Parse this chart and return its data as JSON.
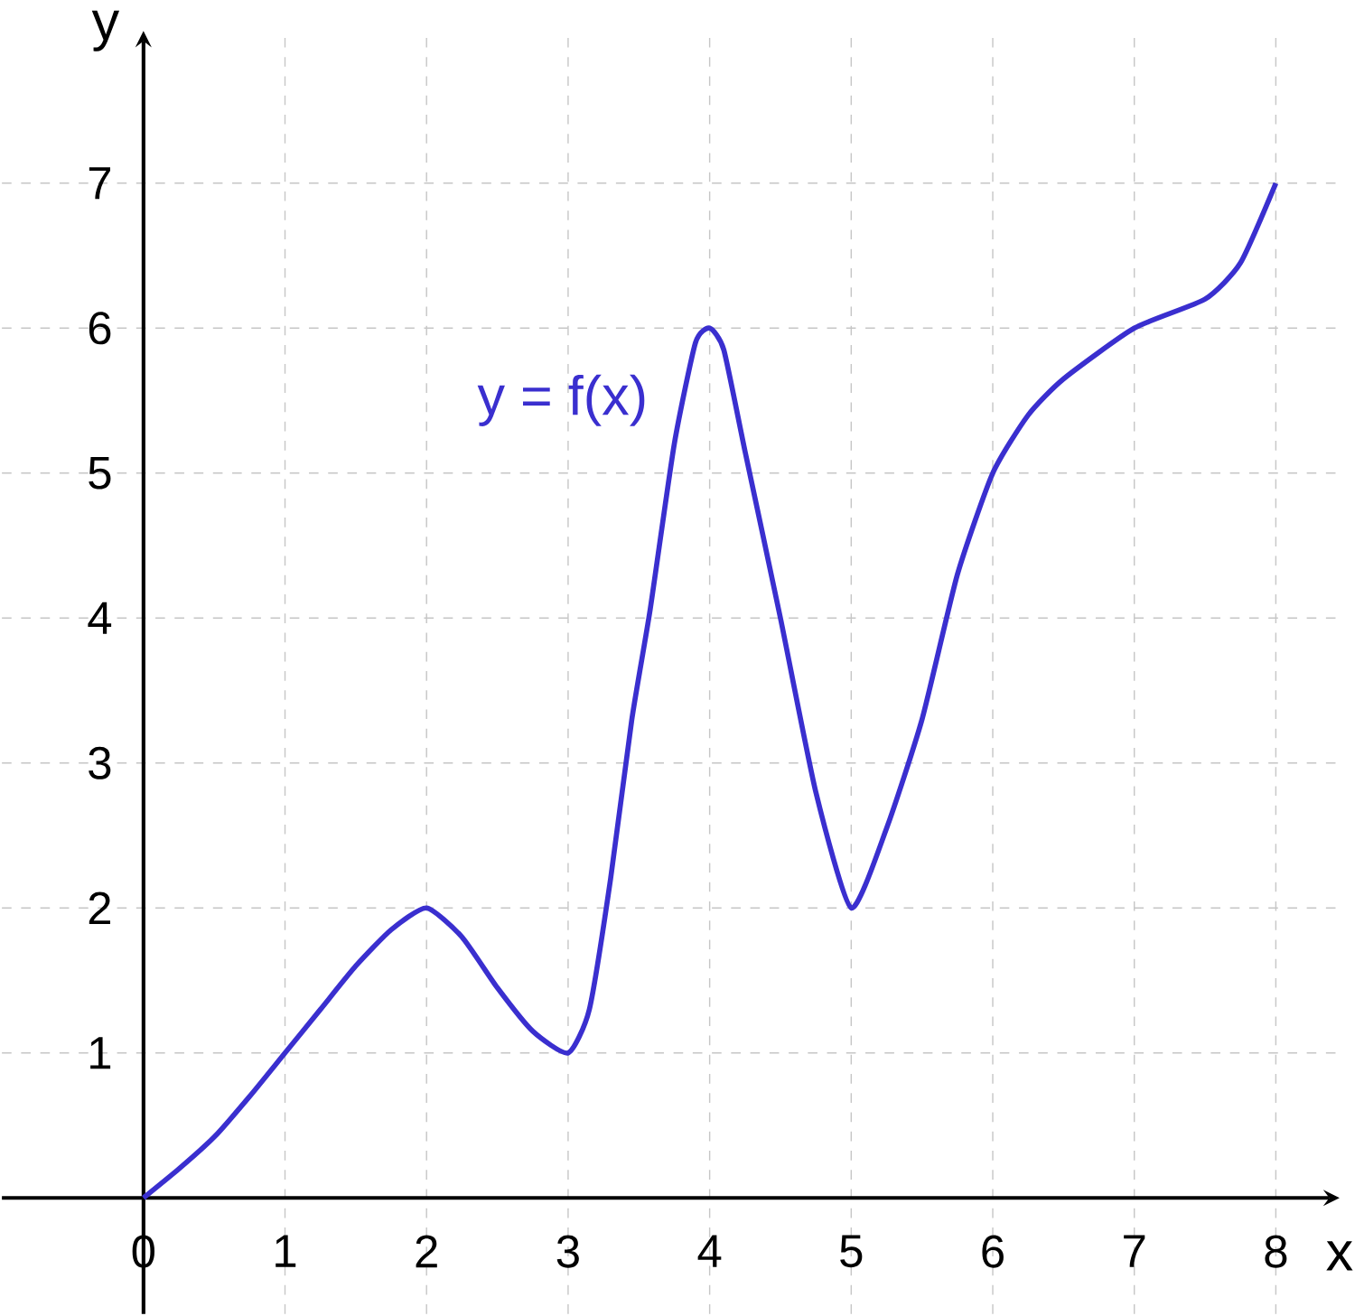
{
  "chart_data": {
    "type": "line",
    "xlabel": "x",
    "ylabel": "y",
    "xlim": [
      -1,
      8.45
    ],
    "ylim": [
      -0.8,
      8.05
    ],
    "xticks": [
      0,
      1,
      2,
      3,
      4,
      5,
      6,
      7,
      8
    ],
    "yticks": [
      1,
      2,
      3,
      4,
      5,
      6,
      7
    ],
    "grid": true,
    "line_style": "solid",
    "marker": "none",
    "annotations": [
      "y = f(x)"
    ],
    "series": [
      {
        "color": "#3a2fcf",
        "x": [
          0,
          0.25,
          0.5,
          0.75,
          1,
          1.25,
          1.5,
          1.75,
          2,
          2.25,
          2.5,
          2.75,
          3,
          3.15,
          3.3,
          3.45,
          3.58,
          3.75,
          3.9,
          4,
          4.1,
          4.25,
          4.5,
          4.75,
          5,
          5.25,
          5.5,
          5.75,
          6,
          6.25,
          6.5,
          7,
          7.5,
          7.75,
          8
        ],
        "values": [
          0,
          0.2,
          0.42,
          0.7,
          1,
          1.3,
          1.6,
          1.85,
          2,
          1.8,
          1.45,
          1.15,
          1,
          1.3,
          2.2,
          3.3,
          4.06,
          5.2,
          5.9,
          6,
          5.85,
          5.15,
          4.0,
          2.8,
          2,
          2.55,
          3.3,
          4.3,
          5,
          5.4,
          5.65,
          6,
          6.2,
          6.45,
          7
        ]
      }
    ]
  }
}
